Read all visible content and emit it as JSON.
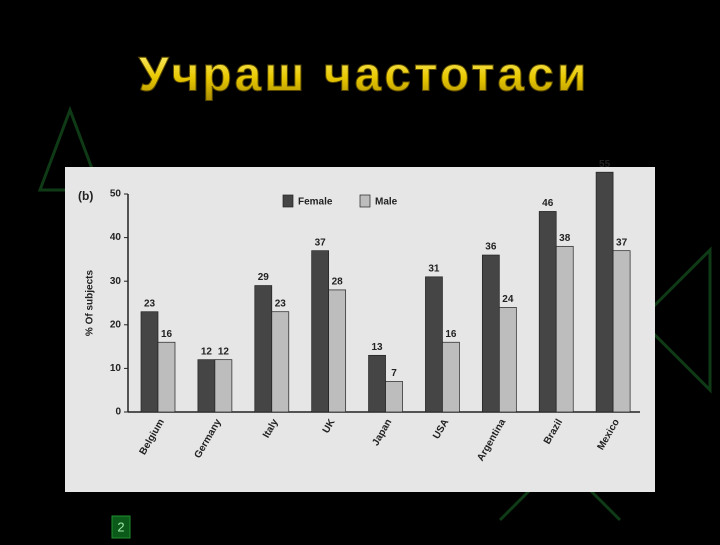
{
  "slide": {
    "title": "Учраш частотаси",
    "page_number": "2"
  },
  "chart_data": {
    "type": "bar",
    "panel_label": "(b)",
    "y_label": "% Of subjects",
    "categories": [
      "Belgium",
      "Germany",
      "Italy",
      "UK",
      "Japan",
      "USA",
      "Argentina",
      "Brazil",
      "Mexico"
    ],
    "series": [
      {
        "name": "Female",
        "color": "#454545",
        "values": [
          23,
          12,
          29,
          37,
          13,
          31,
          36,
          46,
          55
        ]
      },
      {
        "name": "Male",
        "color": "#bdbdbd",
        "values": [
          16,
          12,
          23,
          28,
          7,
          16,
          24,
          38,
          37
        ]
      }
    ],
    "ylim": [
      0,
      50
    ],
    "yticks": [
      0,
      10,
      20,
      30,
      40,
      50
    ],
    "grid": false,
    "legend": "top"
  }
}
